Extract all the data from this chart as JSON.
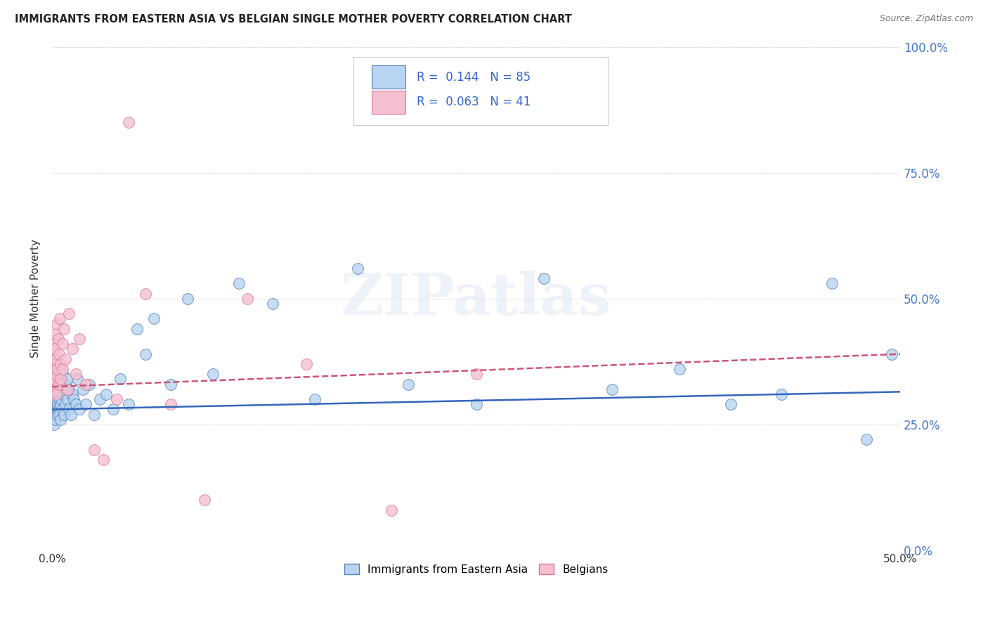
{
  "title": "IMMIGRANTS FROM EASTERN ASIA VS BELGIAN SINGLE MOTHER POVERTY CORRELATION CHART",
  "source": "Source: ZipAtlas.com",
  "ylabel": "Single Mother Poverty",
  "xlim": [
    0,
    0.5
  ],
  "ylim": [
    0,
    1.0
  ],
  "xticks": [
    0.0,
    0.5
  ],
  "yticks": [
    0.0,
    0.25,
    0.5,
    0.75,
    1.0
  ],
  "blue_R": 0.144,
  "blue_N": 85,
  "pink_R": 0.063,
  "pink_N": 41,
  "blue_fill": "#b8d4f0",
  "pink_fill": "#f5c0d0",
  "blue_edge": "#5580bb",
  "pink_edge": "#dd7799",
  "blue_label": "Immigrants from Eastern Asia",
  "pink_label": "Belgians",
  "watermark": "ZIPatlas",
  "blue_trend_y_start": 0.28,
  "blue_trend_y_end": 0.315,
  "pink_trend_y_start": 0.325,
  "pink_trend_y_end": 0.39,
  "blue_scatter_x": [
    0.0002,
    0.0003,
    0.0004,
    0.0004,
    0.0005,
    0.0006,
    0.0007,
    0.0008,
    0.0009,
    0.001,
    0.001,
    0.001,
    0.0012,
    0.0013,
    0.0014,
    0.0015,
    0.0016,
    0.0017,
    0.0018,
    0.002,
    0.002,
    0.002,
    0.0022,
    0.0025,
    0.0027,
    0.003,
    0.003,
    0.003,
    0.0033,
    0.0036,
    0.004,
    0.004,
    0.004,
    0.0043,
    0.0047,
    0.005,
    0.005,
    0.005,
    0.0055,
    0.006,
    0.006,
    0.006,
    0.007,
    0.007,
    0.008,
    0.008,
    0.009,
    0.009,
    0.01,
    0.01,
    0.011,
    0.012,
    0.013,
    0.014,
    0.015,
    0.016,
    0.018,
    0.02,
    0.022,
    0.025,
    0.028,
    0.032,
    0.036,
    0.04,
    0.045,
    0.05,
    0.055,
    0.06,
    0.07,
    0.08,
    0.095,
    0.11,
    0.13,
    0.155,
    0.18,
    0.21,
    0.25,
    0.29,
    0.33,
    0.37,
    0.4,
    0.43,
    0.46,
    0.48,
    0.495
  ],
  "blue_scatter_y": [
    0.33,
    0.28,
    0.31,
    0.35,
    0.29,
    0.34,
    0.27,
    0.32,
    0.3,
    0.36,
    0.25,
    0.29,
    0.33,
    0.28,
    0.31,
    0.34,
    0.27,
    0.3,
    0.35,
    0.28,
    0.32,
    0.26,
    0.3,
    0.33,
    0.28,
    0.31,
    0.35,
    0.27,
    0.29,
    0.33,
    0.3,
    0.28,
    0.34,
    0.27,
    0.31,
    0.29,
    0.33,
    0.26,
    0.3,
    0.32,
    0.28,
    0.35,
    0.27,
    0.31,
    0.33,
    0.29,
    0.3,
    0.34,
    0.28,
    0.32,
    0.27,
    0.31,
    0.3,
    0.29,
    0.34,
    0.28,
    0.32,
    0.29,
    0.33,
    0.27,
    0.3,
    0.31,
    0.28,
    0.34,
    0.29,
    0.44,
    0.39,
    0.46,
    0.33,
    0.5,
    0.35,
    0.53,
    0.49,
    0.3,
    0.56,
    0.33,
    0.29,
    0.54,
    0.32,
    0.36,
    0.29,
    0.31,
    0.53,
    0.22,
    0.39
  ],
  "pink_scatter_x": [
    0.0002,
    0.0003,
    0.0005,
    0.0007,
    0.0009,
    0.001,
    0.0012,
    0.0015,
    0.0018,
    0.002,
    0.0022,
    0.0025,
    0.003,
    0.003,
    0.0035,
    0.004,
    0.004,
    0.0045,
    0.005,
    0.005,
    0.006,
    0.006,
    0.007,
    0.008,
    0.009,
    0.01,
    0.012,
    0.014,
    0.016,
    0.02,
    0.025,
    0.03,
    0.038,
    0.045,
    0.055,
    0.07,
    0.09,
    0.115,
    0.15,
    0.2,
    0.25
  ],
  "pink_scatter_y": [
    0.36,
    0.33,
    0.38,
    0.41,
    0.34,
    0.37,
    0.32,
    0.4,
    0.35,
    0.43,
    0.38,
    0.31,
    0.45,
    0.36,
    0.42,
    0.33,
    0.39,
    0.46,
    0.37,
    0.34,
    0.41,
    0.36,
    0.44,
    0.38,
    0.32,
    0.47,
    0.4,
    0.35,
    0.42,
    0.33,
    0.2,
    0.18,
    0.3,
    0.85,
    0.51,
    0.29,
    0.1,
    0.5,
    0.37,
    0.08,
    0.35
  ]
}
